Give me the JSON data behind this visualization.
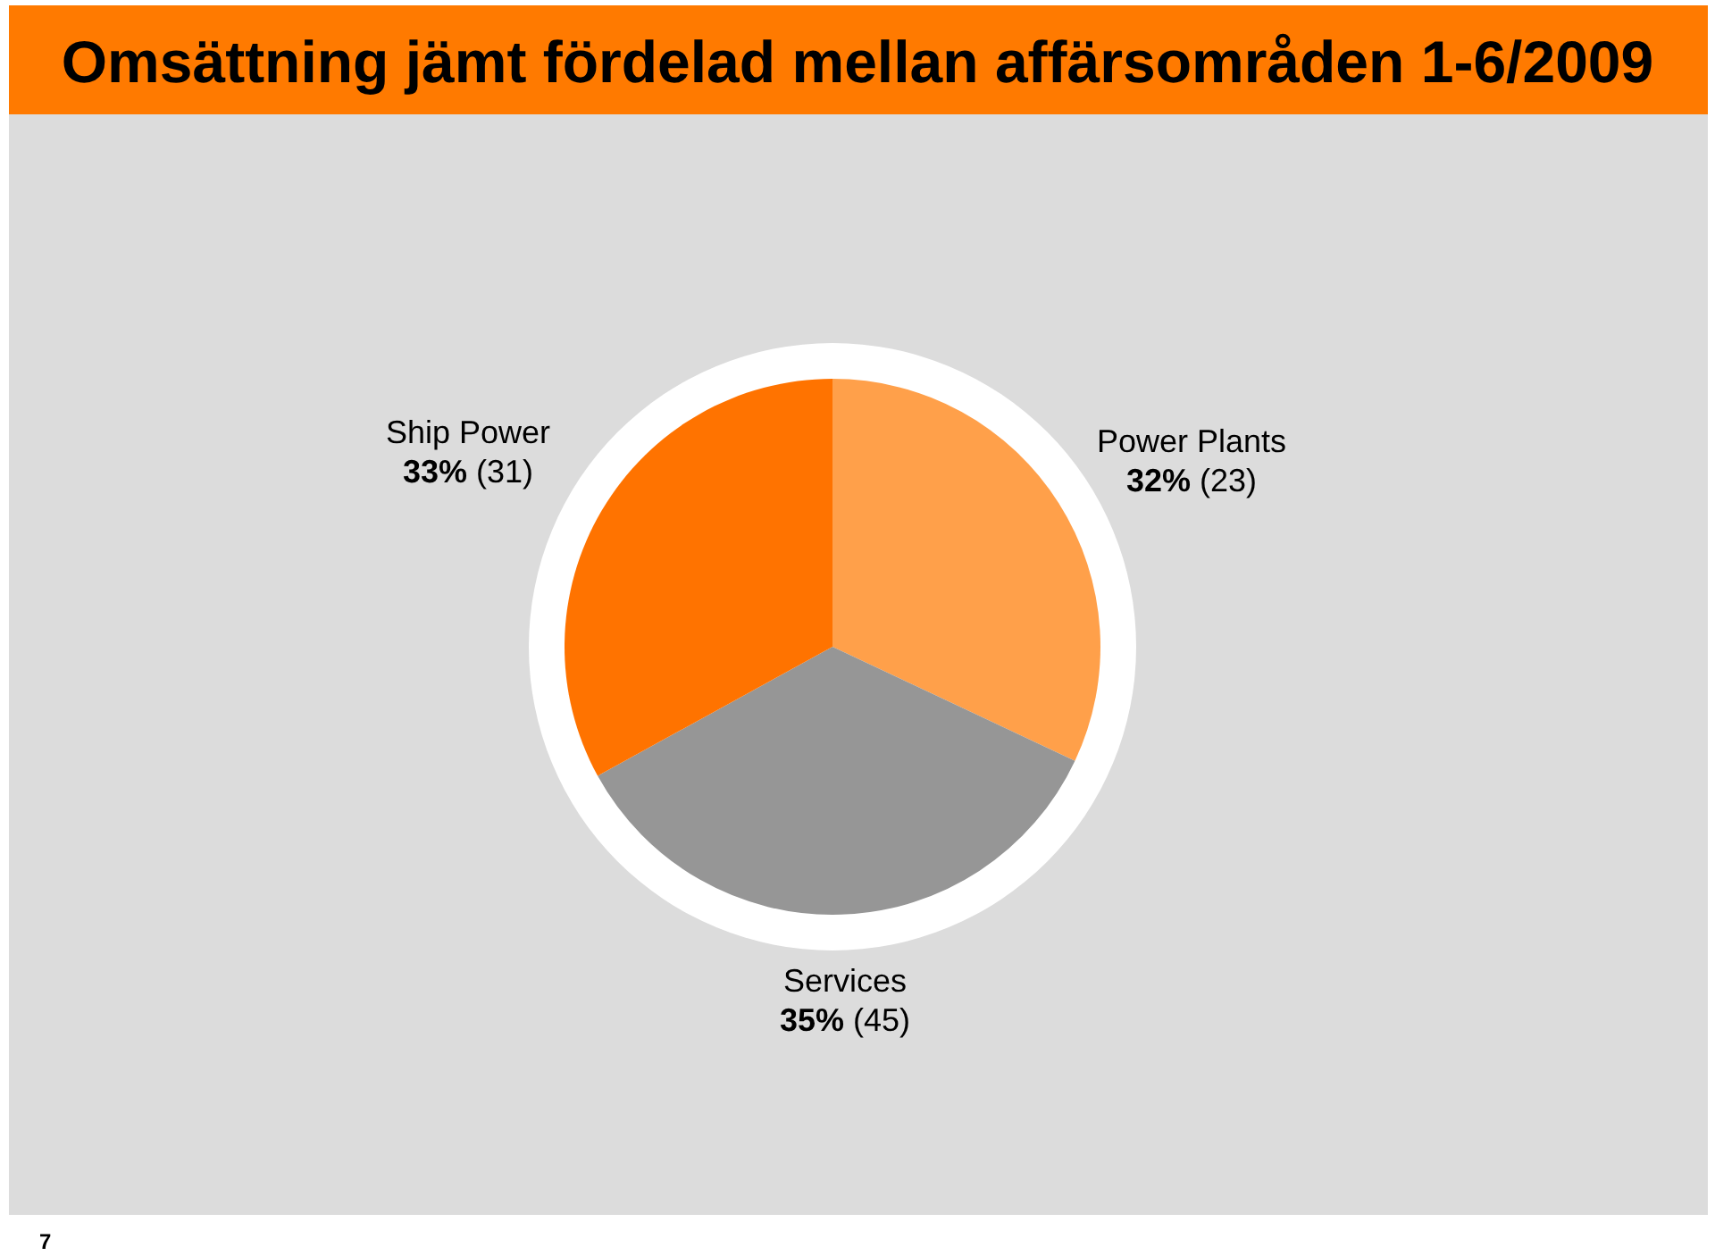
{
  "chart_data": {
    "type": "pie",
    "title": "Omsättning jämt fördelad mellan affärsområden 1-6/2009",
    "categories": [
      "Power Plants",
      "Services",
      "Ship Power"
    ],
    "values": [
      32,
      35,
      33
    ],
    "colors": [
      "#ffa04a",
      "#969696",
      "#ff7300"
    ],
    "value_labels": [
      "32% (23)",
      "35% (45)",
      "33% (31)"
    ],
    "annotations": [
      "7"
    ]
  }
}
